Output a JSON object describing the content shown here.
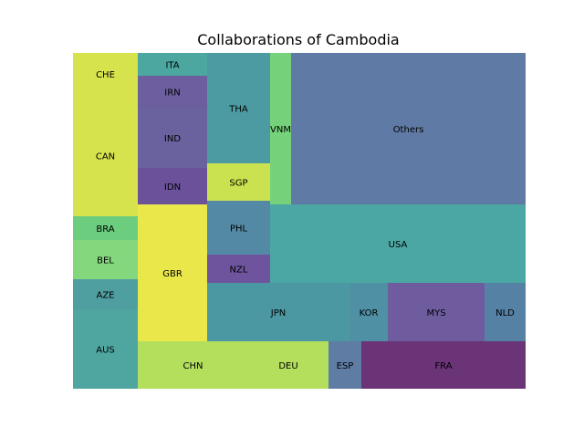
{
  "chart_data": {
    "type": "treemap",
    "title": "Collaborations of Cambodia",
    "items": [
      {
        "label": "CHE",
        "value": 64,
        "color": "#d6e34d"
      },
      {
        "label": "CAN",
        "value": 189,
        "color": "#d6e34d"
      },
      {
        "label": "BRA",
        "value": 37,
        "color": "#6ccd7e"
      },
      {
        "label": "BEL",
        "value": 61,
        "color": "#84d77c"
      },
      {
        "label": "AZE",
        "value": 46,
        "color": "#4f9ea0"
      },
      {
        "label": "AUS",
        "value": 124,
        "color": "#4fa6a0"
      },
      {
        "label": "ITA",
        "value": 27,
        "color": "#4ba7a0"
      },
      {
        "label": "IRN",
        "value": 38,
        "color": "#6c5e9f"
      },
      {
        "label": "IND",
        "value": 70,
        "color": "#6a629e"
      },
      {
        "label": "IDN",
        "value": 44,
        "color": "#6a519a"
      },
      {
        "label": "GBR",
        "value": 158,
        "color": "#eae74a"
      },
      {
        "label": "THA",
        "value": 82,
        "color": "#4c9ba2"
      },
      {
        "label": "SGP",
        "value": 28,
        "color": "#cbe250"
      },
      {
        "label": "VNM",
        "value": 37,
        "color": "#75d27a"
      },
      {
        "label": "Others",
        "value": 564,
        "color": "#5f7aa4"
      },
      {
        "label": "PHL",
        "value": 41,
        "color": "#5389a4"
      },
      {
        "label": "NZL",
        "value": 22,
        "color": "#6e549c"
      },
      {
        "label": "USA",
        "value": 236,
        "color": "#4ba7a3"
      },
      {
        "label": "JPN",
        "value": 144,
        "color": "#4c98a2"
      },
      {
        "label": "KOR",
        "value": 39,
        "color": "#4f90a4"
      },
      {
        "label": "MYS",
        "value": 98,
        "color": "#6e5c9f"
      },
      {
        "label": "NLD",
        "value": 41,
        "color": "#5581a4"
      },
      {
        "label": "CHN",
        "value": 113,
        "color": "#b3df5d"
      },
      {
        "label": "DEU",
        "value": 68,
        "color": "#b3df5d"
      },
      {
        "label": "ESP",
        "value": 28,
        "color": "#5f7ca4"
      },
      {
        "label": "FRA",
        "value": 140,
        "color": "#6a3477"
      }
    ]
  }
}
